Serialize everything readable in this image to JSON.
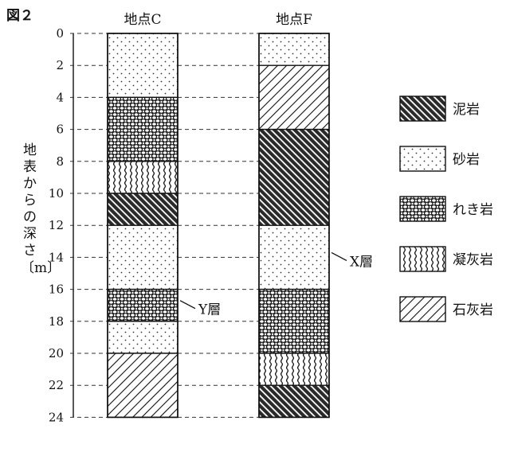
{
  "figure_label": "図２",
  "axis": {
    "label_chars": [
      "地",
      "表",
      "か",
      "ら",
      "の",
      "深",
      "さ"
    ],
    "unit": "〔m〕",
    "ticks": [
      0,
      2,
      4,
      6,
      8,
      10,
      12,
      14,
      16,
      18,
      20,
      22,
      24
    ]
  },
  "columns": [
    {
      "title": "地点C",
      "layers": [
        {
          "top": 0,
          "bottom": 4,
          "rock": "sandstone"
        },
        {
          "top": 4,
          "bottom": 8,
          "rock": "conglomerate"
        },
        {
          "top": 8,
          "bottom": 10,
          "rock": "tuff"
        },
        {
          "top": 10,
          "bottom": 12,
          "rock": "mudstone"
        },
        {
          "top": 12,
          "bottom": 16,
          "rock": "sandstone"
        },
        {
          "top": 16,
          "bottom": 18,
          "rock": "conglomerate"
        },
        {
          "top": 18,
          "bottom": 20,
          "rock": "sandstone"
        },
        {
          "top": 20,
          "bottom": 24,
          "rock": "limestone"
        }
      ]
    },
    {
      "title": "地点F",
      "layers": [
        {
          "top": 0,
          "bottom": 2,
          "rock": "sandstone"
        },
        {
          "top": 2,
          "bottom": 6,
          "rock": "limestone"
        },
        {
          "top": 6,
          "bottom": 12,
          "rock": "mudstone"
        },
        {
          "top": 12,
          "bottom": 16,
          "rock": "sandstone"
        },
        {
          "top": 16,
          "bottom": 20,
          "rock": "conglomerate"
        },
        {
          "top": 20,
          "bottom": 22,
          "rock": "tuff"
        },
        {
          "top": 22,
          "bottom": 24,
          "rock": "mudstone"
        }
      ]
    }
  ],
  "annotations": [
    {
      "label": "Y層",
      "column": 0,
      "depth": 17
    },
    {
      "label": "X層",
      "column": 1,
      "depth": 14
    }
  ],
  "legend": [
    {
      "rock": "mudstone",
      "label": "泥岩"
    },
    {
      "rock": "sandstone",
      "label": "砂岩"
    },
    {
      "rock": "conglomerate",
      "label": "れき岩"
    },
    {
      "rock": "tuff",
      "label": "凝灰岩"
    },
    {
      "rock": "limestone",
      "label": "石灰岩"
    }
  ]
}
